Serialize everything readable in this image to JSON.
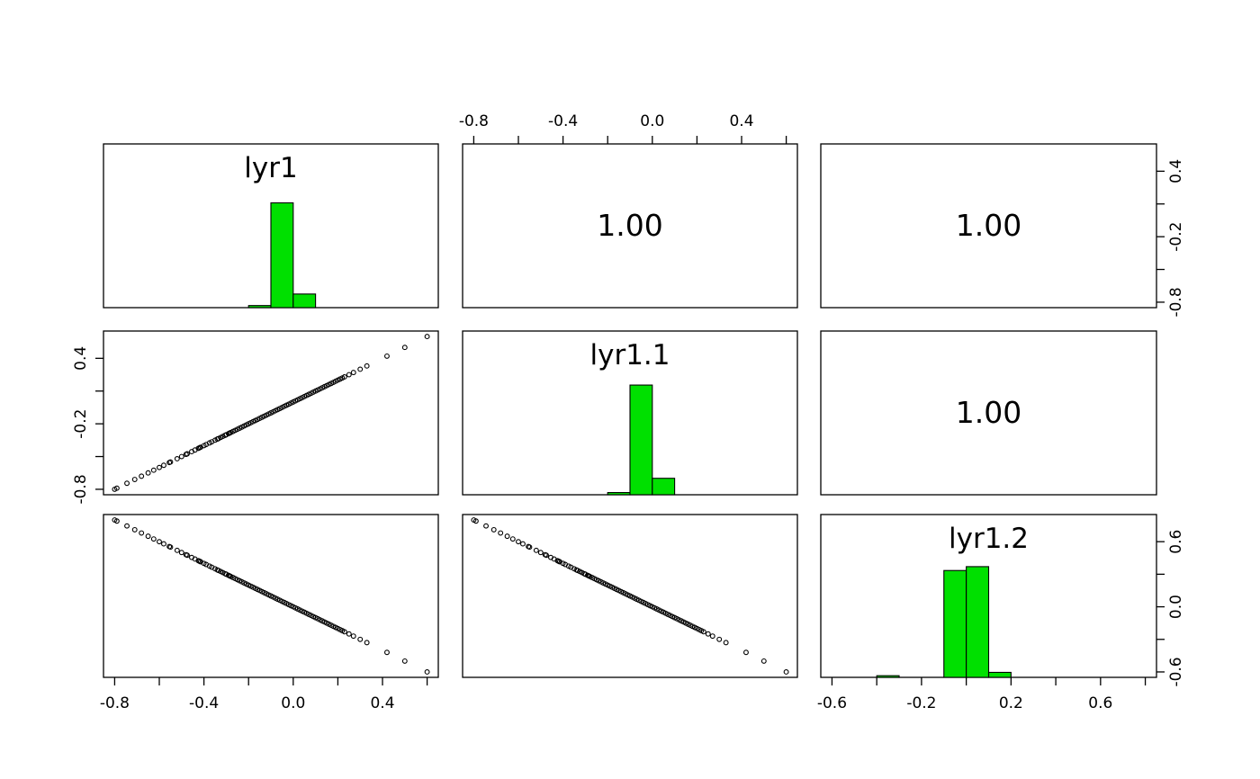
{
  "chart_data": {
    "type": "scatter",
    "subtype": "pairs-correlation-matrix",
    "title": "",
    "background": "#ffffff",
    "panel_border_color": "#000000",
    "text_color": "#000000",
    "hist_fill": "#00e000",
    "hist_stroke": "#000000",
    "grid": false,
    "point": {
      "shape": "open-circle",
      "color": "#000000",
      "radius": 2.4
    },
    "variables": [
      {
        "name": "lyr1",
        "sign": 1,
        "range": [
          -0.85,
          0.65
        ],
        "h_ticks": [
          -0.8,
          -0.6,
          -0.4,
          -0.2,
          0,
          0.2,
          0.4,
          0.6
        ],
        "h_labeled": [
          -0.8,
          -0.4,
          0,
          0.4
        ],
        "v_ticks": [
          0.4,
          0.1,
          -0.2,
          -0.5,
          -0.8
        ],
        "v_labeled": [
          0.4,
          -0.2,
          -0.8
        ],
        "histogram": {
          "max_height_frac": 0.64,
          "bars": [
            {
              "x0": -0.2,
              "x1": -0.1,
              "h": 0.02
            },
            {
              "x0": -0.1,
              "x1": 0.0,
              "h": 1.0
            },
            {
              "x0": 0.0,
              "x1": 0.1,
              "h": 0.13
            }
          ]
        }
      },
      {
        "name": "lyr1.1",
        "sign": 1,
        "range": [
          -0.85,
          0.65
        ],
        "h_ticks": [
          -0.8,
          -0.6,
          -0.4,
          -0.2,
          0,
          0.2,
          0.4,
          0.6
        ],
        "h_labeled": [
          -0.8,
          -0.4,
          0,
          0.4
        ],
        "v_ticks": [
          0.4,
          0.1,
          -0.2,
          -0.5,
          -0.8
        ],
        "v_labeled": [
          0.4,
          -0.2,
          -0.8
        ],
        "histogram": {
          "max_height_frac": 0.67,
          "bars": [
            {
              "x0": -0.2,
              "x1": -0.1,
              "h": 0.02
            },
            {
              "x0": -0.1,
              "x1": 0.0,
              "h": 1.0
            },
            {
              "x0": 0.0,
              "x1": 0.1,
              "h": 0.15
            }
          ]
        }
      },
      {
        "name": "lyr1.2",
        "sign": -1,
        "range": [
          -0.65,
          0.85
        ],
        "h_ticks": [
          -0.6,
          -0.4,
          -0.2,
          0,
          0.2,
          0.4,
          0.6,
          0.8
        ],
        "h_labeled": [
          -0.6,
          -0.2,
          0.2,
          0.6
        ],
        "v_ticks": [
          0.6,
          0.3,
          0,
          -0.3,
          -0.6
        ],
        "v_labeled": [
          0.6,
          0,
          -0.6
        ],
        "histogram": {
          "max_height_frac": 0.68,
          "bars": [
            {
              "x0": -0.4,
              "x1": -0.3,
              "h": 0.015
            },
            {
              "x0": -0.1,
              "x1": 0.0,
              "h": 0.965
            },
            {
              "x0": 0.0,
              "x1": 0.1,
              "h": 1.0
            },
            {
              "x0": 0.1,
              "x1": 0.2,
              "h": 0.045
            }
          ]
        }
      }
    ],
    "correlations": [
      {
        "row": 0,
        "col": 1,
        "label": "1.00"
      },
      {
        "row": 0,
        "col": 2,
        "label": "1.00"
      },
      {
        "row": 1,
        "col": 2,
        "label": "1.00"
      }
    ],
    "axes": [
      {
        "side": "top",
        "col": 1
      },
      {
        "side": "bottom",
        "col": 0
      },
      {
        "side": "bottom",
        "col": 2
      },
      {
        "side": "left",
        "row": 1
      },
      {
        "side": "right",
        "row": 0
      },
      {
        "side": "right",
        "row": 2
      }
    ],
    "scatter": {
      "lower_panels": [
        {
          "row": 1,
          "col": 0,
          "x_var": "lyr1",
          "y_var": "lyr1.1",
          "relation": "y = x"
        },
        {
          "row": 2,
          "col": 0,
          "x_var": "lyr1",
          "y_var": "lyr1.2",
          "relation": "y = -x"
        },
        {
          "row": 2,
          "col": 1,
          "x_var": "lyr1.1",
          "y_var": "lyr1.2",
          "relation": "y = -x"
        }
      ],
      "base_values": [
        -0.8,
        -0.79,
        -0.745,
        -0.71,
        -0.68,
        -0.65,
        -0.625,
        -0.6,
        -0.58,
        -0.555,
        -0.55,
        -0.52,
        -0.5,
        -0.48,
        -0.475,
        -0.455,
        -0.44,
        -0.425,
        -0.42,
        -0.415,
        -0.4,
        -0.39,
        -0.375,
        -0.365,
        -0.35,
        -0.34,
        -0.335,
        -0.325,
        -0.315,
        -0.305,
        -0.3,
        -0.29,
        -0.285,
        -0.28,
        -0.27,
        -0.26,
        -0.25,
        -0.24,
        -0.23,
        -0.22,
        -0.21,
        -0.2,
        -0.19,
        -0.18,
        -0.17,
        -0.16,
        -0.15,
        -0.14,
        -0.13,
        -0.12,
        -0.11,
        -0.1,
        -0.09,
        -0.08,
        -0.07,
        -0.06,
        -0.05,
        -0.04,
        -0.03,
        -0.02,
        -0.01,
        0,
        0.01,
        0.02,
        0.03,
        0.04,
        0.05,
        0.06,
        0.07,
        0.08,
        0.09,
        0.1,
        0.11,
        0.12,
        0.13,
        0.14,
        0.15,
        0.16,
        0.17,
        0.18,
        0.19,
        0.2,
        0.21,
        0.22,
        0.23,
        0.25,
        0.27,
        0.3,
        0.33,
        0.42,
        0.5,
        0.6
      ]
    }
  }
}
